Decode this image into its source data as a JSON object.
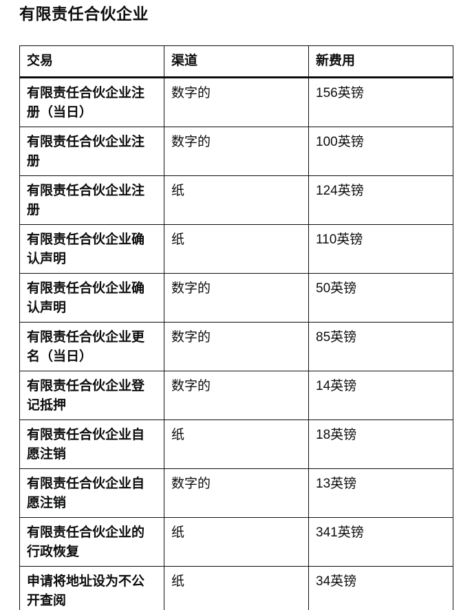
{
  "title": "有限责任合伙企业",
  "colors": {
    "text": "#0b0c0c",
    "border": "#0b0c0c",
    "background": "#ffffff"
  },
  "table": {
    "headers": {
      "transaction": "交易",
      "channel": "渠道",
      "fee": "新费用"
    },
    "rows": [
      {
        "transaction": "有限责任合伙企业注册（当日）",
        "channel": "数字的",
        "fee": "156英镑"
      },
      {
        "transaction": "有限责任合伙企业注册",
        "channel": "数字的",
        "fee": "100英镑"
      },
      {
        "transaction": "有限责任合伙企业注册",
        "channel": "纸",
        "fee": "124英镑"
      },
      {
        "transaction": "有限责任合伙企业确认声明",
        "channel": "纸",
        "fee": "110英镑"
      },
      {
        "transaction": "有限责任合伙企业确认声明",
        "channel": "数字的",
        "fee": "50英镑"
      },
      {
        "transaction": "有限责任合伙企业更名（当日）",
        "channel": "数字的",
        "fee": "85英镑"
      },
      {
        "transaction": "有限责任合伙企业登记抵押",
        "channel": "数字的",
        "fee": "14英镑"
      },
      {
        "transaction": "有限责任合伙企业自愿注销",
        "channel": "纸",
        "fee": "18英镑"
      },
      {
        "transaction": "有限责任合伙企业自愿注销",
        "channel": "数字的",
        "fee": "13英镑"
      },
      {
        "transaction": "有限责任合伙企业的行政恢复",
        "channel": "纸",
        "fee": "341英镑"
      },
      {
        "transaction": "申请将地址设为不公开查阅",
        "channel": "纸",
        "fee": "34英镑"
      }
    ]
  }
}
